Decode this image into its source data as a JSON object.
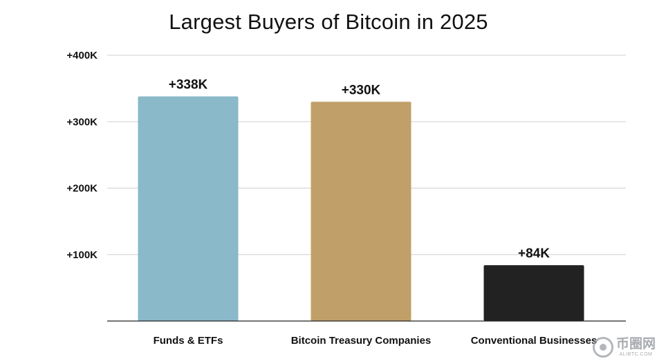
{
  "chart_data": {
    "type": "bar",
    "title": "Largest Buyers of Bitcoin in 2025",
    "xlabel": "",
    "ylabel": "",
    "categories": [
      "Funds & ETFs",
      "Bitcoin Treasury Companies",
      "Conventional Businesses"
    ],
    "values": [
      338000,
      330000,
      84000
    ],
    "data_labels": [
      "+338K",
      "+330K",
      "+84K"
    ],
    "bar_colors": [
      "#8ab9c9",
      "#c0a068",
      "#222222"
    ],
    "yticks": [
      100000,
      200000,
      300000,
      400000
    ],
    "ytick_labels": [
      "+100K",
      "+200K",
      "+300K",
      "+400K"
    ],
    "ylim": [
      0,
      400000
    ],
    "grid": true,
    "legend": "none"
  },
  "watermark": {
    "main": "币圈网",
    "sub": "ALIBTC.COM"
  }
}
